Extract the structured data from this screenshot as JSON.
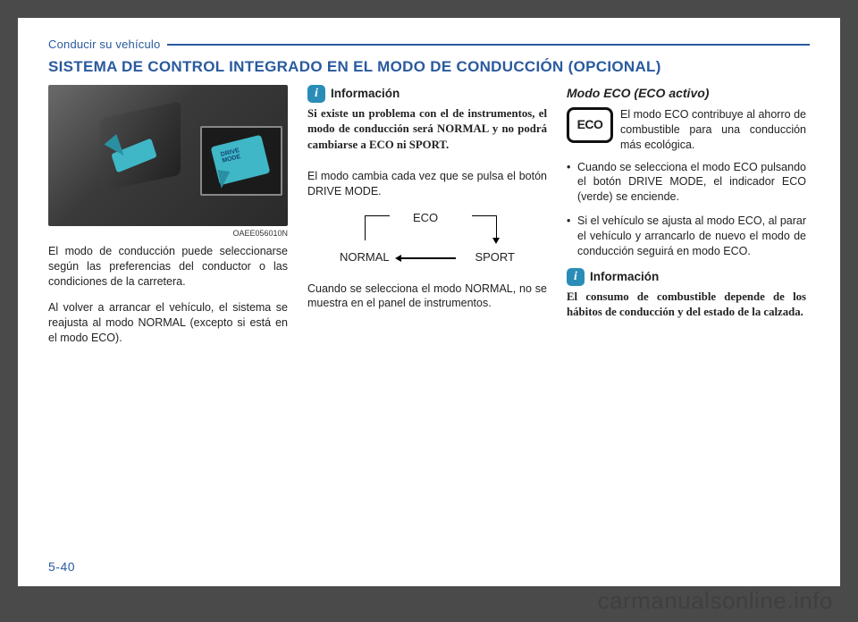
{
  "header": {
    "section": "Conducir su vehículo",
    "title": "SISTEMA DE CONTROL INTEGRADO EN EL MODO DE CONDUCCIÓN (OPCIONAL)"
  },
  "col1": {
    "photo_ref": "OAEE056010N",
    "p1": "El modo de conducción puede seleccionarse según las preferencias del conductor o las condiciones de la carretera.",
    "p2": "Al volver a arrancar el vehículo, el sistema se reajusta al modo NORMAL (excepto si está en el modo ECO)."
  },
  "col2": {
    "info_label": "Información",
    "info_body": "Si existe un problema con el de instrumentos, el modo de conducción será NORMAL y no podrá cambiarse a ECO ni SPORT.",
    "p1": "El modo cambia cada vez que se pulsa el botón DRIVE MODE.",
    "cycle": {
      "top": "ECO",
      "left": "NORMAL",
      "right": "SPORT"
    },
    "p2": "Cuando se selecciona el modo NORMAL, no se muestra en el panel de instrumentos."
  },
  "col3": {
    "subhead": "Modo ECO (ECO activo)",
    "eco_icon": "ECO",
    "eco_text": "El modo ECO contribuye al ahorro de combustible para una conducción más ecológica.",
    "bullets": [
      "Cuando se selecciona el modo ECO pulsando el botón DRIVE MODE, el indicador ECO (verde) se enciende.",
      "Si el vehículo se ajusta al modo ECO, al parar el vehículo y arrancarlo de nuevo el modo de conducción seguirá en modo ECO."
    ],
    "info_label": "Información",
    "info_body": "El consumo de combustible depende de los hábitos de conducción y del estado de la calzada."
  },
  "footer": {
    "page_num": "5-40",
    "watermark": "carmanualsonline.info"
  },
  "colors": {
    "brand": "#2a5a9e",
    "info_icon_bg": "#2a8db8",
    "page_bg": "#ffffff",
    "body_bg": "#4a4a4a"
  }
}
